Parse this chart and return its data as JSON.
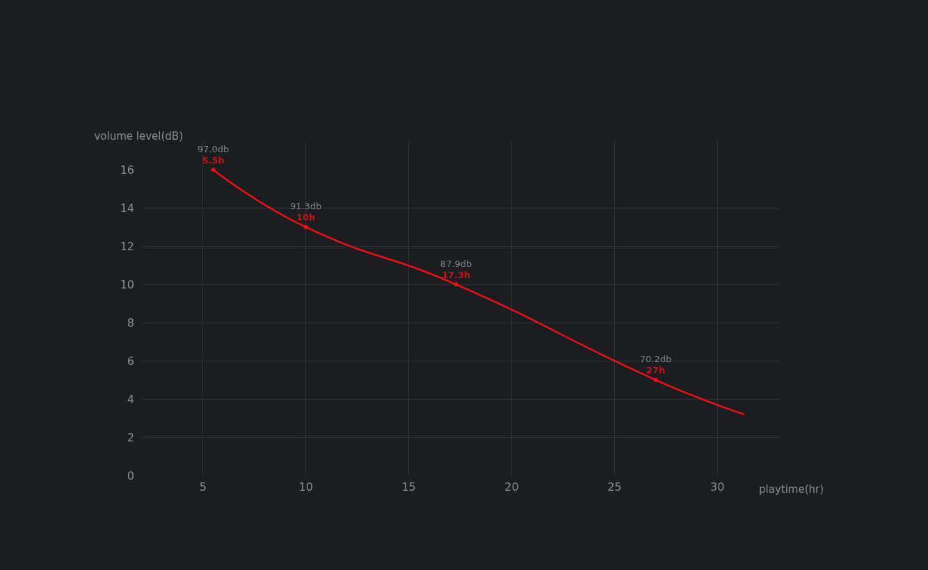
{
  "chart_data": {
    "type": "line",
    "xlabel": "playtime(hr)",
    "ylabel": "volume level(dB)",
    "x": [
      5.5,
      10,
      17.3,
      27,
      31.3
    ],
    "series": [
      {
        "color": "#f01010",
        "values": [
          16,
          13,
          10,
          5,
          3.2
        ]
      }
    ],
    "annotations": [
      {
        "text": "97.0db\n5.5h",
        "x": 5.5,
        "y": 16
      },
      {
        "text": "91.3db\n10h",
        "x": 10,
        "y": 13
      },
      {
        "text": "87.9db\n17.3h",
        "x": 17.3,
        "y": 10
      },
      {
        "text": "70.2db\n27h",
        "x": 27,
        "y": 5
      }
    ],
    "xlim": [
      2,
      33
    ],
    "xticks": [
      5,
      10,
      15,
      20,
      25,
      30
    ],
    "ylim": [
      0,
      17.5
    ],
    "yticks": [
      0,
      2,
      4,
      6,
      8,
      10,
      12,
      14,
      16
    ],
    "grid": true,
    "marker": "circle",
    "line_style": "solid"
  }
}
